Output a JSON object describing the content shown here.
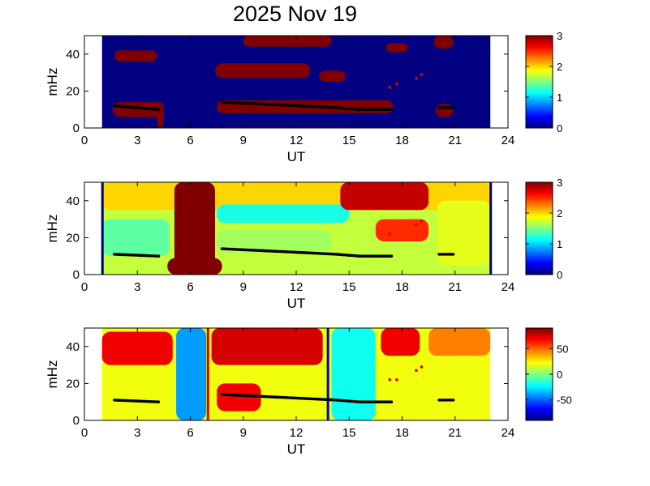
{
  "figure": {
    "title": "2025 Nov 19"
  },
  "chart_data": [
    {
      "type": "heatmap",
      "panel": 1,
      "xlabel": "UT",
      "ylabel": "mHz",
      "xlim": [
        0,
        24
      ],
      "ylim": [
        0,
        50
      ],
      "xticks": [
        0,
        3,
        6,
        9,
        12,
        15,
        18,
        21,
        24
      ],
      "yticks": [
        0,
        20,
        40
      ],
      "data_extent_x": [
        1.0,
        23.0
      ],
      "colorbar": {
        "min": 0,
        "max": 3,
        "ticks": [
          0,
          1,
          2,
          3
        ]
      },
      "background_value": 0,
      "blobs": [
        {
          "x": [
            1.6,
            4.5
          ],
          "y": [
            6,
            14
          ],
          "value": 3
        },
        {
          "x": [
            4.1,
            4.5
          ],
          "y": [
            0,
            14
          ],
          "value": 3
        },
        {
          "x": [
            1.7,
            4.1
          ],
          "y": [
            36,
            42
          ],
          "value": 3
        },
        {
          "x": [
            7.4,
            12.8
          ],
          "y": [
            27,
            35
          ],
          "value": 3
        },
        {
          "x": [
            9.0,
            14.0
          ],
          "y": [
            44,
            50
          ],
          "value": 3
        },
        {
          "x": [
            13.3,
            14.8
          ],
          "y": [
            25,
            31
          ],
          "value": 3
        },
        {
          "x": [
            17.1,
            18.3
          ],
          "y": [
            41,
            46
          ],
          "value": 3
        },
        {
          "x": [
            7.5,
            17.5
          ],
          "y": [
            8,
            15
          ],
          "value": 3
        },
        {
          "x": [
            19.8,
            20.9
          ],
          "y": [
            43,
            50
          ],
          "value": 3
        },
        {
          "x": [
            19.9,
            20.9
          ],
          "y": [
            6,
            13
          ],
          "value": 3
        }
      ],
      "markers": [
        {
          "x": [
            1.7,
            4.2
          ],
          "y": [
            12,
            10
          ],
          "color": "black"
        },
        {
          "x": [
            7.8,
            12.2,
            14.3,
            15.6,
            17.4
          ],
          "y": [
            14,
            12,
            11,
            10,
            10
          ],
          "color": "black"
        },
        {
          "x": [
            20.1,
            20.9
          ],
          "y": [
            11,
            11
          ],
          "color": "black"
        },
        {
          "x": [
            17.3,
            17.7,
            18.8,
            19.1
          ],
          "y": [
            22,
            24,
            27,
            29
          ],
          "color": "red"
        }
      ]
    },
    {
      "type": "heatmap",
      "panel": 2,
      "xlabel": "UT",
      "ylabel": "mHz",
      "xlim": [
        0,
        24
      ],
      "ylim": [
        0,
        50
      ],
      "xticks": [
        0,
        3,
        6,
        9,
        12,
        15,
        18,
        21,
        24
      ],
      "yticks": [
        0,
        20,
        40
      ],
      "data_extent_x": [
        1.0,
        23.0
      ],
      "colorbar": {
        "min": 0,
        "max": 3,
        "ticks": [
          0,
          1,
          2,
          3
        ]
      },
      "background_value": 1.7,
      "blobs": [
        {
          "x": [
            1.0,
            23.0
          ],
          "y": [
            35,
            50
          ],
          "value": 2.0
        },
        {
          "x": [
            1.0,
            4.8
          ],
          "y": [
            10,
            30
          ],
          "value": 1.4
        },
        {
          "x": [
            7.5,
            15.0
          ],
          "y": [
            28,
            38
          ],
          "value": 1.2
        },
        {
          "x": [
            7.5,
            14.0
          ],
          "y": [
            12,
            24
          ],
          "value": 1.6
        },
        {
          "x": [
            14.5,
            19.5
          ],
          "y": [
            35,
            50
          ],
          "value": 2.8
        },
        {
          "x": [
            16.5,
            19.5
          ],
          "y": [
            18,
            30
          ],
          "value": 2.5
        },
        {
          "x": [
            20.0,
            23.0
          ],
          "y": [
            5,
            40
          ],
          "value": 1.8
        },
        {
          "x": [
            5.1,
            7.4
          ],
          "y": [
            0,
            50
          ],
          "value": 3
        },
        {
          "x": [
            4.7,
            7.8
          ],
          "y": [
            0,
            9
          ],
          "value": 3
        }
      ],
      "markers": [
        {
          "x": [
            1.7,
            4.2
          ],
          "y": [
            11,
            10
          ],
          "color": "black"
        },
        {
          "x": [
            7.8,
            12.2,
            14.3,
            15.6,
            17.4
          ],
          "y": [
            14,
            12,
            11,
            10,
            10
          ],
          "color": "black"
        },
        {
          "x": [
            20.1,
            20.9
          ],
          "y": [
            11,
            11
          ],
          "color": "black"
        },
        {
          "x": [
            17.3,
            18.8,
            19.1
          ],
          "y": [
            22,
            27,
            29
          ],
          "color": "red"
        }
      ]
    },
    {
      "type": "heatmap",
      "panel": 3,
      "xlabel": "UT",
      "ylabel": "mHz",
      "xlim": [
        0,
        24
      ],
      "ylim": [
        0,
        50
      ],
      "xticks": [
        0,
        3,
        6,
        9,
        12,
        15,
        18,
        21,
        24
      ],
      "yticks": [
        0,
        20,
        40
      ],
      "data_extent_x": [
        1.0,
        23.0
      ],
      "colorbar": {
        "min": -90,
        "max": 90,
        "ticks": [
          50,
          0,
          -50
        ]
      },
      "background_value": 20,
      "blobs": [
        {
          "x": [
            1.0,
            5.0
          ],
          "y": [
            30,
            48
          ],
          "value": 70
        },
        {
          "x": [
            5.2,
            6.9
          ],
          "y": [
            0,
            50
          ],
          "value": -40
        },
        {
          "x": [
            7.2,
            13.5
          ],
          "y": [
            30,
            50
          ],
          "value": 75
        },
        {
          "x": [
            14.0,
            16.5
          ],
          "y": [
            0,
            50
          ],
          "value": -20
        },
        {
          "x": [
            16.8,
            19.0
          ],
          "y": [
            35,
            50
          ],
          "value": 70
        },
        {
          "x": [
            19.5,
            23.0
          ],
          "y": [
            35,
            50
          ],
          "value": 45
        },
        {
          "x": [
            7.5,
            10.0
          ],
          "y": [
            5,
            20
          ],
          "value": 70
        }
      ],
      "vertical_lines": [
        {
          "x": 7.0,
          "color": "red"
        },
        {
          "x": 13.8,
          "color": "blue"
        }
      ],
      "markers": [
        {
          "x": [
            1.7,
            4.2
          ],
          "y": [
            11,
            10
          ],
          "color": "black"
        },
        {
          "x": [
            7.8,
            12.2,
            14.3,
            15.6,
            17.4
          ],
          "y": [
            14,
            12,
            11,
            10,
            10
          ],
          "color": "black"
        },
        {
          "x": [
            20.1,
            20.9
          ],
          "y": [
            11,
            11
          ],
          "color": "black"
        },
        {
          "x": [
            17.3,
            17.7,
            18.8,
            19.1
          ],
          "y": [
            22,
            22,
            27,
            29
          ],
          "color": "red"
        }
      ]
    }
  ]
}
